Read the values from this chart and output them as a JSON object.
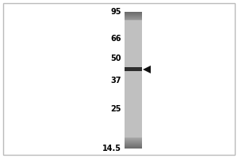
{
  "figure_width": 3.0,
  "figure_height": 2.0,
  "dpi": 100,
  "background_color": "#ffffff",
  "border_color": "#bbbbbb",
  "mw_labels": [
    "95",
    "66",
    "50",
    "37",
    "25",
    "14.5"
  ],
  "mw_values": [
    95,
    66,
    50,
    37,
    25,
    14.5
  ],
  "band_mw": 43,
  "band_color": "#1a1a1a",
  "arrow_color": "#111111",
  "lane_color_top": "#7a7a7a",
  "lane_color_mid": "#c8c8c8",
  "lane_color_bot": "#808080"
}
